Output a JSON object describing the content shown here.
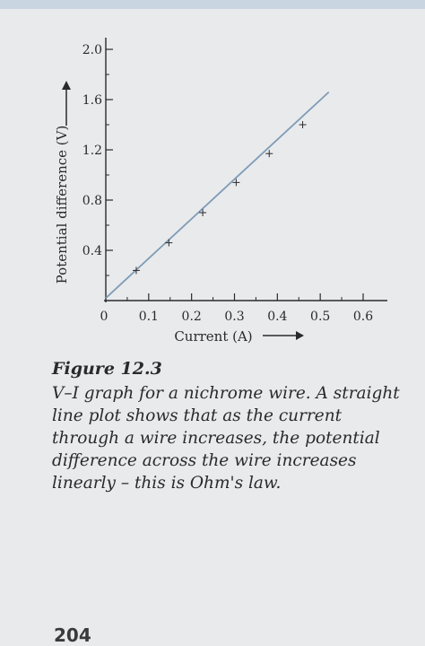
{
  "chart_data": {
    "type": "line",
    "xlabel": "Current (A)",
    "ylabel": "Potential difference (V)",
    "x_ticks": [
      "0",
      "0.1",
      "0.2",
      "0.3",
      "0.4",
      "0.5",
      "0.6"
    ],
    "y_ticks": [
      "0.4",
      "0.8",
      "1.2",
      "1.6",
      "2.0"
    ],
    "xlim": [
      0,
      0.6
    ],
    "ylim": [
      0,
      2.0
    ],
    "grid": false,
    "series": [
      {
        "points": [
          {
            "x": 0.071,
            "y": 0.24
          },
          {
            "x": 0.147,
            "y": 0.46
          },
          {
            "x": 0.226,
            "y": 0.7
          },
          {
            "x": 0.304,
            "y": 0.94
          },
          {
            "x": 0.381,
            "y": 1.17
          },
          {
            "x": 0.459,
            "y": 1.4
          }
        ],
        "fit_line": [
          {
            "x": 0,
            "y": 0.02
          },
          {
            "x": 0.52,
            "y": 1.66
          }
        ]
      }
    ],
    "colors": {
      "line": "#7f9cb6",
      "axis": "#2a2a2e"
    }
  },
  "figure": {
    "label": "Figure 12.3",
    "caption": "V–I graph for a nichrome wire. A straight line plot shows that as the current through a wire increases, the potential difference across the wire increases linearly – this is Ohm's law."
  },
  "page_number": "204"
}
